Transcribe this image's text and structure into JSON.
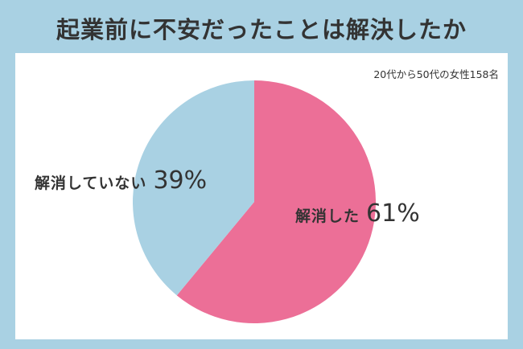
{
  "title": "起業前に不安だったことは解決したか",
  "note": "20代から50代の女性158名",
  "chart_data": {
    "type": "pie",
    "title": "起業前に不安だったことは解決したか",
    "slices": [
      {
        "label": "解消した",
        "value": 61,
        "display": "61%",
        "color": "#ec6f97"
      },
      {
        "label": "解消していない",
        "value": 39,
        "display": "39%",
        "color": "#a9d1e3"
      }
    ]
  }
}
